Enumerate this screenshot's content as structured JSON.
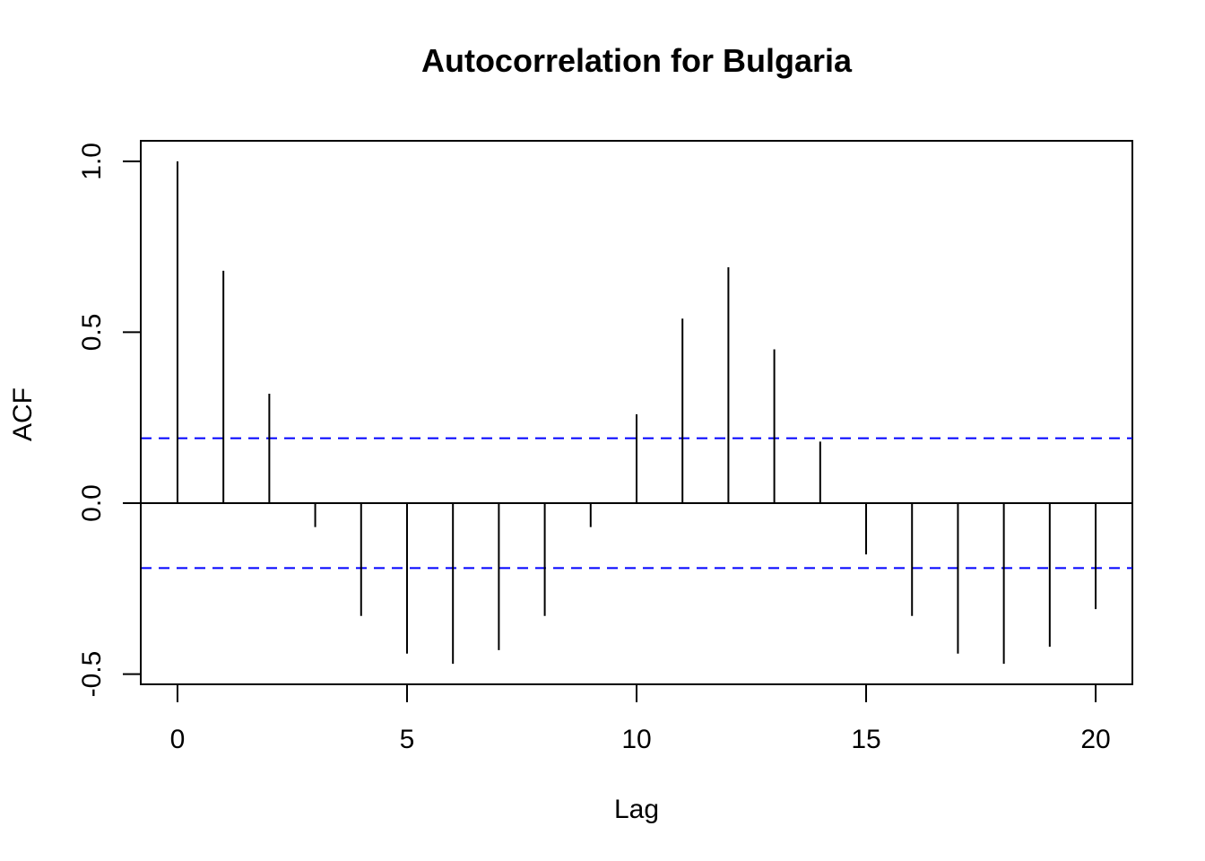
{
  "chart_data": {
    "type": "bar",
    "title": "Autocorrelation for Bulgaria",
    "xlabel": "Lag",
    "ylabel": "ACF",
    "x": [
      0,
      1,
      2,
      3,
      4,
      5,
      6,
      7,
      8,
      9,
      10,
      11,
      12,
      13,
      14,
      15,
      16,
      17,
      18,
      19,
      20
    ],
    "values": [
      1.0,
      0.68,
      0.32,
      -0.07,
      -0.33,
      -0.44,
      -0.47,
      -0.43,
      -0.33,
      -0.07,
      0.26,
      0.54,
      0.69,
      0.45,
      0.18,
      -0.15,
      -0.33,
      -0.44,
      -0.47,
      -0.42,
      -0.31
    ],
    "confidence_bounds": [
      0.19,
      -0.19
    ],
    "xlim": [
      -0.8,
      20.8
    ],
    "ylim": [
      -0.53,
      1.06
    ],
    "x_ticks": [
      0,
      5,
      10,
      15,
      20
    ],
    "x_tick_labels": [
      "0",
      "5",
      "10",
      "15",
      "20"
    ],
    "y_ticks": [
      -0.5,
      0.0,
      0.5,
      1.0
    ],
    "y_tick_labels": [
      "-0.5",
      "0.0",
      "0.5",
      "1.0"
    ],
    "grid": false,
    "colors": {
      "bars": "#000000",
      "confidence": "#0000ff",
      "zero_line": "#000000"
    }
  }
}
